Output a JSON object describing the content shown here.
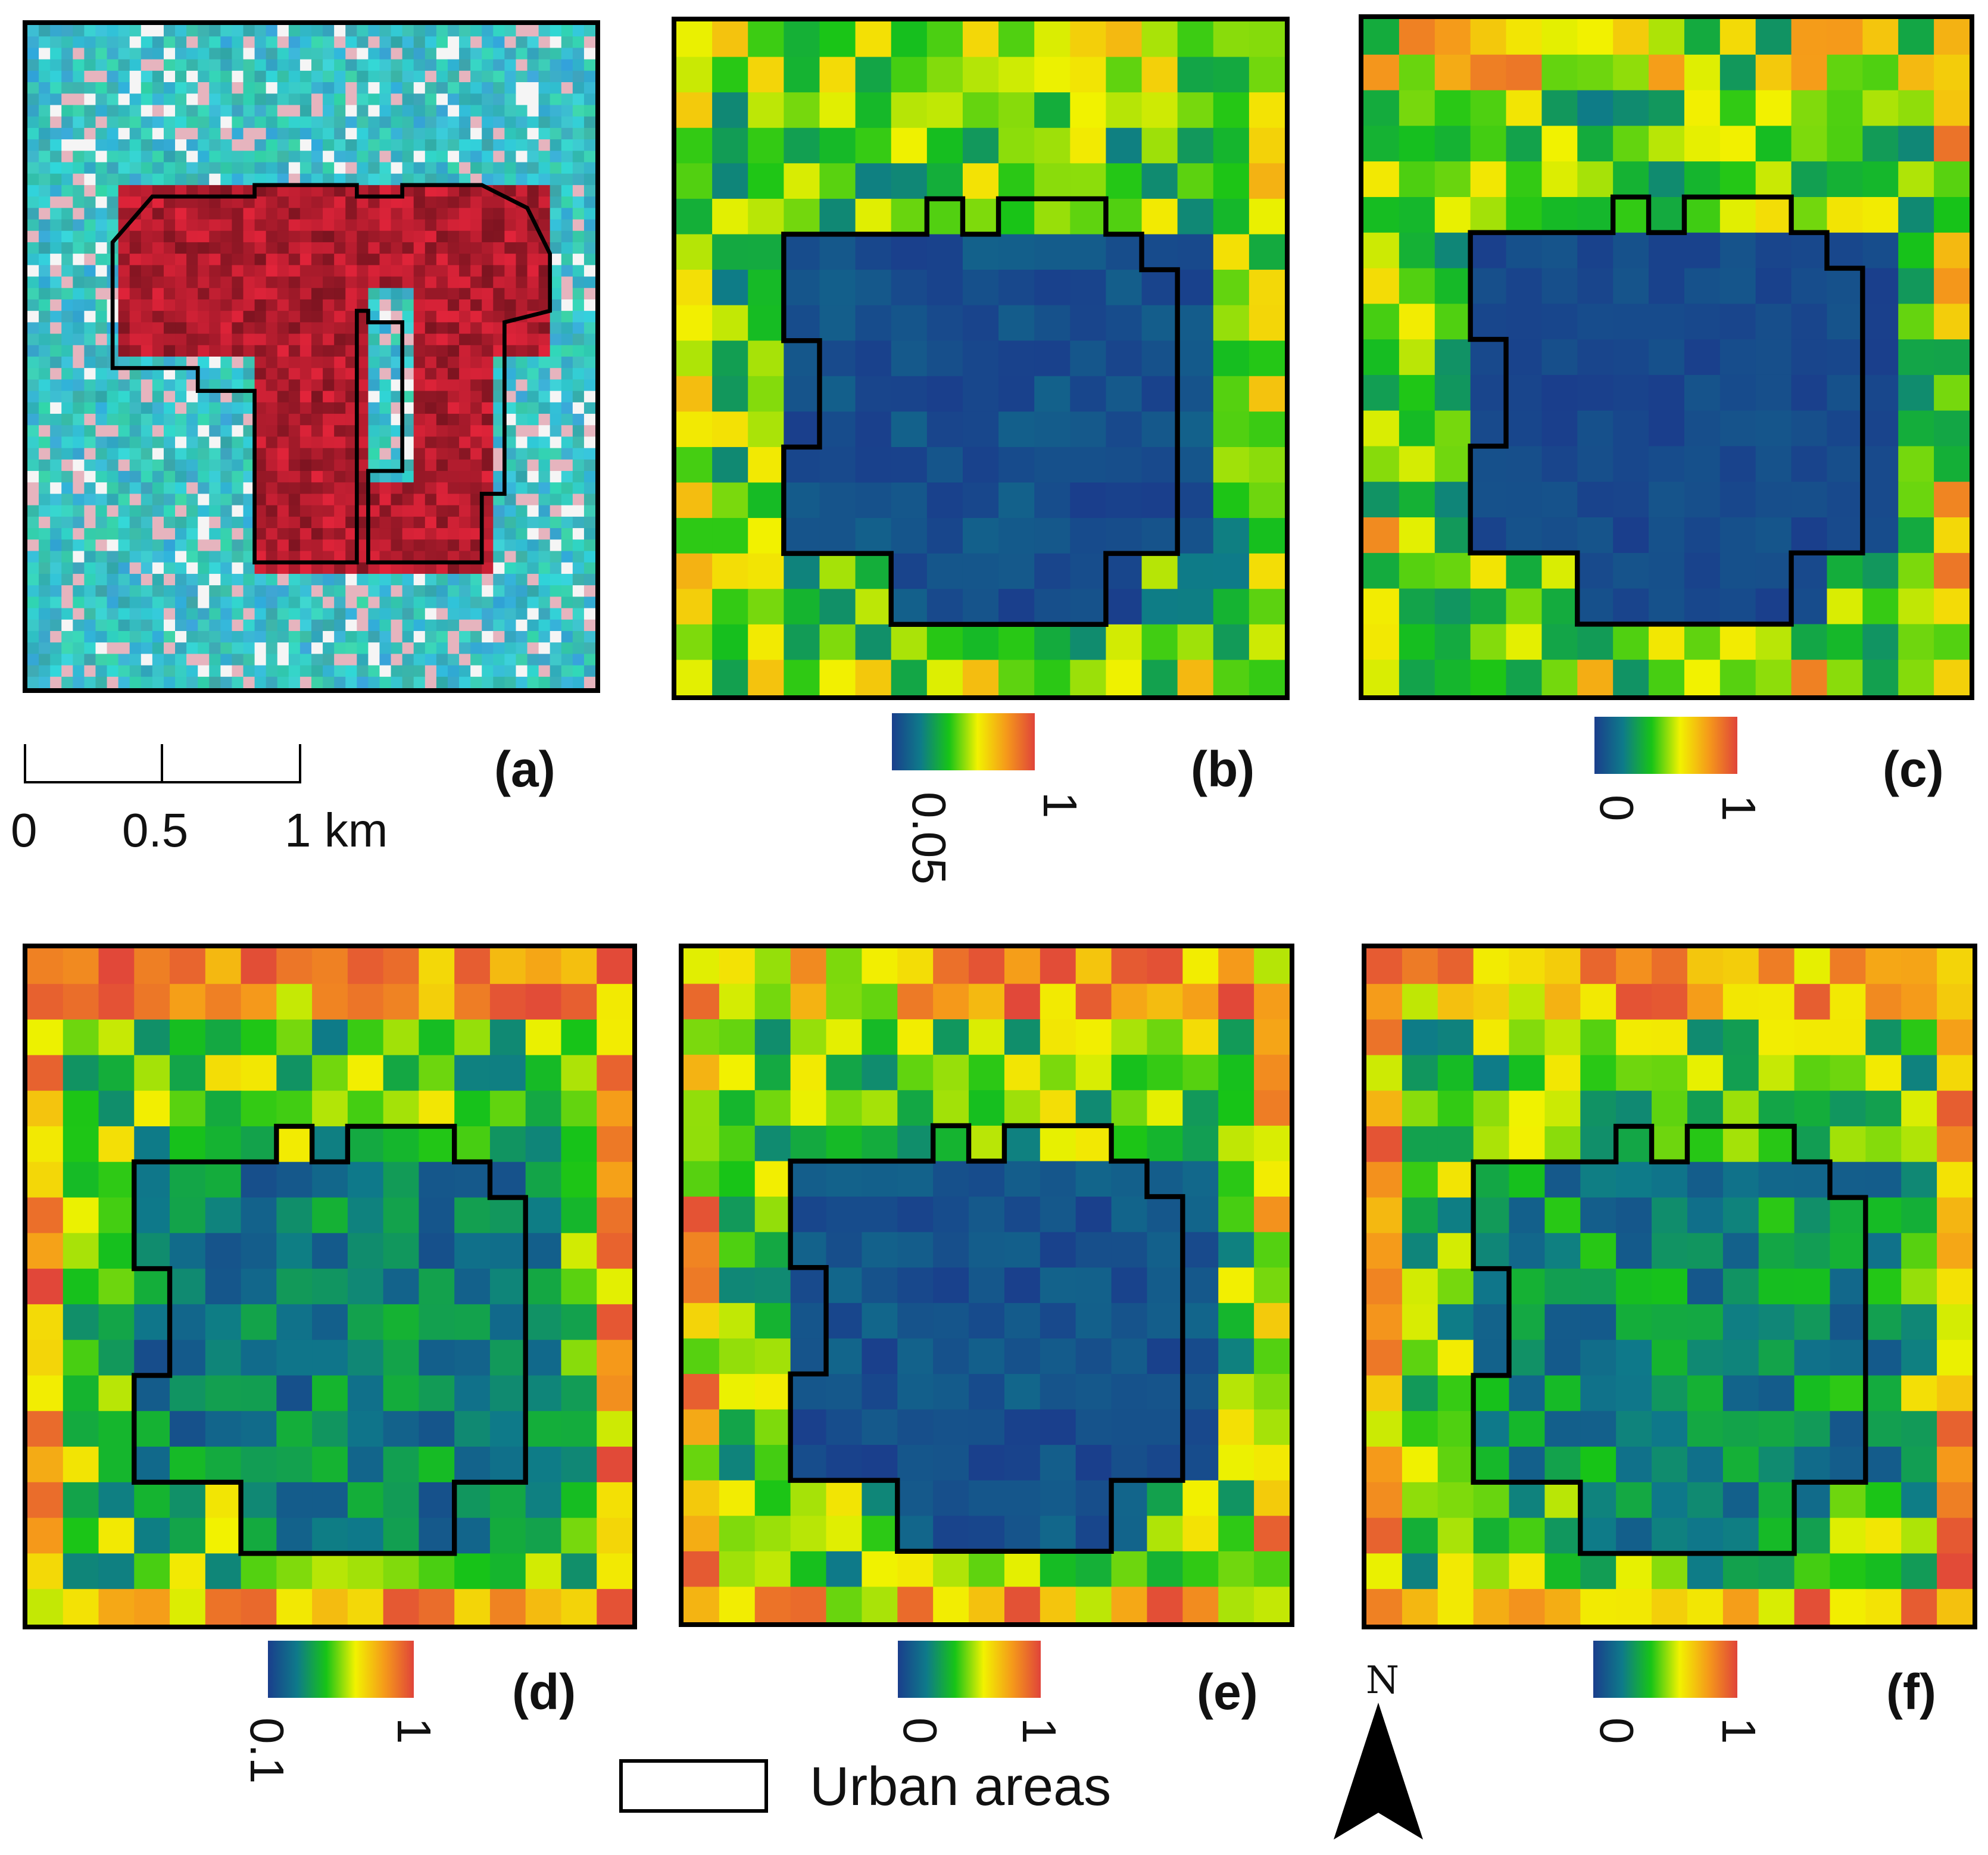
{
  "panels": {
    "a": {
      "label": "(a)",
      "type": "false-color image"
    },
    "b": {
      "label": "(b)",
      "ramp_min": "0.05",
      "ramp_max": "1"
    },
    "c": {
      "label": "(c)",
      "ramp_min": "0",
      "ramp_max": "1"
    },
    "d": {
      "label": "(d)",
      "ramp_min": "0.1",
      "ramp_max": "1"
    },
    "e": {
      "label": "(e)",
      "ramp_min": "0",
      "ramp_max": "1"
    },
    "f": {
      "label": "(f)",
      "ramp_min": "0",
      "ramp_max": "1"
    }
  },
  "scale_bar": {
    "t0": "0",
    "t1": "0.5",
    "t2": "1 km"
  },
  "legend": {
    "urban_label": "Urban areas"
  },
  "north": {
    "letter": "N"
  },
  "colors": {
    "ramp": [
      "#1a3e8c",
      "#0e7a8a",
      "#17c417",
      "#f2f200",
      "#f59a1a",
      "#e0443a"
    ],
    "outline": "#000000",
    "urban_red": "#e2243a",
    "background_cyan": "#3fd8dd"
  }
}
